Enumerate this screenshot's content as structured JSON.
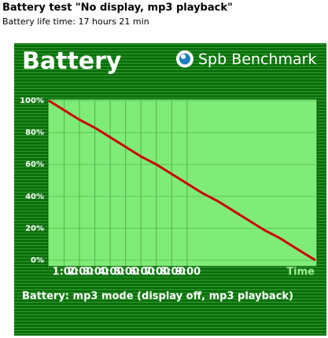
{
  "chart_data": {
    "type": "line",
    "title": "Battery test \"No display, mp3 playback\"",
    "subtitle": "Battery life time: 17 hours 21 min",
    "panel_title": "Battery",
    "brand": "Spb Benchmark",
    "x_label": "Time",
    "caption": "Battery: mp3 mode (display off, mp3 playback)",
    "x": [
      0,
      1,
      2,
      3,
      4,
      5,
      6,
      7,
      8,
      9,
      10,
      11,
      12,
      13,
      14,
      15,
      16,
      17,
      17.35
    ],
    "series": [
      {
        "name": "Battery",
        "color": "#cc0000",
        "values": [
          100,
          94,
          88,
          83,
          77,
          71,
          65,
          60,
          54,
          48,
          42,
          37,
          31,
          25,
          19,
          14,
          8,
          2,
          0
        ]
      }
    ],
    "xlim": [
      0,
      17.35
    ],
    "xticks": [
      {
        "value": 1,
        "label": "1:00"
      },
      {
        "value": 2,
        "label": "2:00"
      },
      {
        "value": 3,
        "label": "3:00"
      },
      {
        "value": 4,
        "label": "4:00"
      },
      {
        "value": 5,
        "label": "5:00"
      },
      {
        "value": 6,
        "label": "6:00"
      },
      {
        "value": 7,
        "label": "7:00"
      },
      {
        "value": 8,
        "label": "8:00"
      },
      {
        "value": 9,
        "label": "9:00"
      }
    ],
    "ylim": [
      0,
      100
    ],
    "yticks": [
      {
        "value": 0,
        "label": "0%"
      },
      {
        "value": 20,
        "label": "20%"
      },
      {
        "value": 40,
        "label": "40%"
      },
      {
        "value": 60,
        "label": "60%"
      },
      {
        "value": 80,
        "label": "80%"
      },
      {
        "value": 100,
        "label": "100%"
      }
    ],
    "grid": true
  }
}
